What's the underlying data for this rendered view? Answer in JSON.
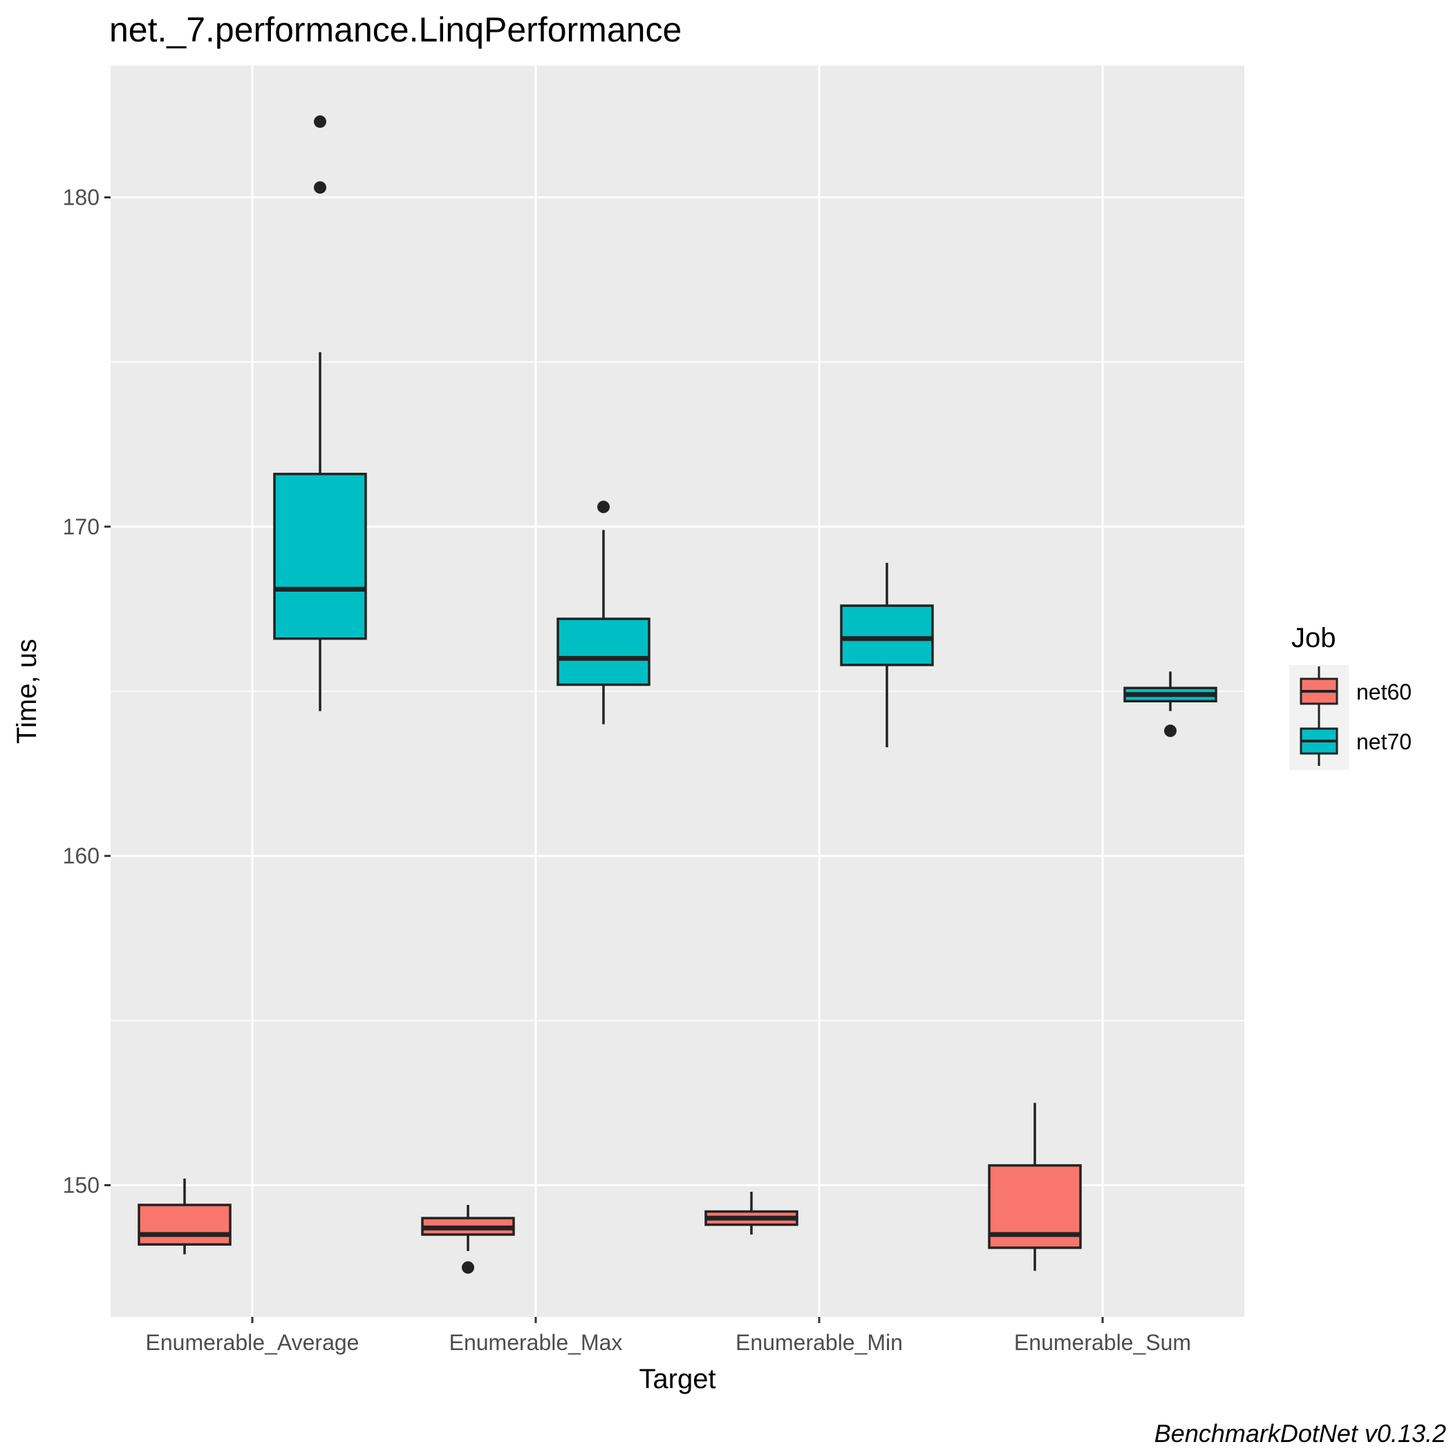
{
  "chart_data": {
    "type": "box",
    "title": "net._7.performance.LinqPerformance",
    "xlabel": "Target",
    "ylabel": "Time, us",
    "caption": "BenchmarkDotNet v0.13.2",
    "categories": [
      "Enumerable_Average",
      "Enumerable_Max",
      "Enumerable_Min",
      "Enumerable_Sum"
    ],
    "ylim": [
      146,
      184
    ],
    "yticks": [
      150,
      160,
      170,
      180
    ],
    "grid": true,
    "legend": {
      "title": "Job",
      "position": "right"
    },
    "series": [
      {
        "name": "net60",
        "color": "#F8766D",
        "boxes": [
          {
            "category": "Enumerable_Average",
            "whisker_low": 147.9,
            "q1": 148.2,
            "median": 148.5,
            "q3": 149.4,
            "whisker_high": 150.2,
            "outliers": []
          },
          {
            "category": "Enumerable_Max",
            "whisker_low": 148.0,
            "q1": 148.5,
            "median": 148.7,
            "q3": 149.0,
            "whisker_high": 149.4,
            "outliers": [
              147.5
            ]
          },
          {
            "category": "Enumerable_Min",
            "whisker_low": 148.5,
            "q1": 148.8,
            "median": 149.0,
            "q3": 149.2,
            "whisker_high": 149.8,
            "outliers": []
          },
          {
            "category": "Enumerable_Sum",
            "whisker_low": 147.4,
            "q1": 148.1,
            "median": 148.5,
            "q3": 150.6,
            "whisker_high": 152.5,
            "outliers": []
          }
        ]
      },
      {
        "name": "net70",
        "color": "#00BFC4",
        "boxes": [
          {
            "category": "Enumerable_Average",
            "whisker_low": 164.4,
            "q1": 166.6,
            "median": 168.1,
            "q3": 171.6,
            "whisker_high": 175.3,
            "outliers": [
              180.3,
              182.3
            ]
          },
          {
            "category": "Enumerable_Max",
            "whisker_low": 164.0,
            "q1": 165.2,
            "median": 166.0,
            "q3": 167.2,
            "whisker_high": 169.9,
            "outliers": [
              170.6
            ]
          },
          {
            "category": "Enumerable_Min",
            "whisker_low": 163.3,
            "q1": 165.8,
            "median": 166.6,
            "q3": 167.6,
            "whisker_high": 168.9,
            "outliers": []
          },
          {
            "category": "Enumerable_Sum",
            "whisker_low": 164.4,
            "q1": 164.7,
            "median": 164.9,
            "q3": 165.1,
            "whisker_high": 165.6,
            "outliers": [
              163.8
            ]
          }
        ]
      }
    ]
  }
}
